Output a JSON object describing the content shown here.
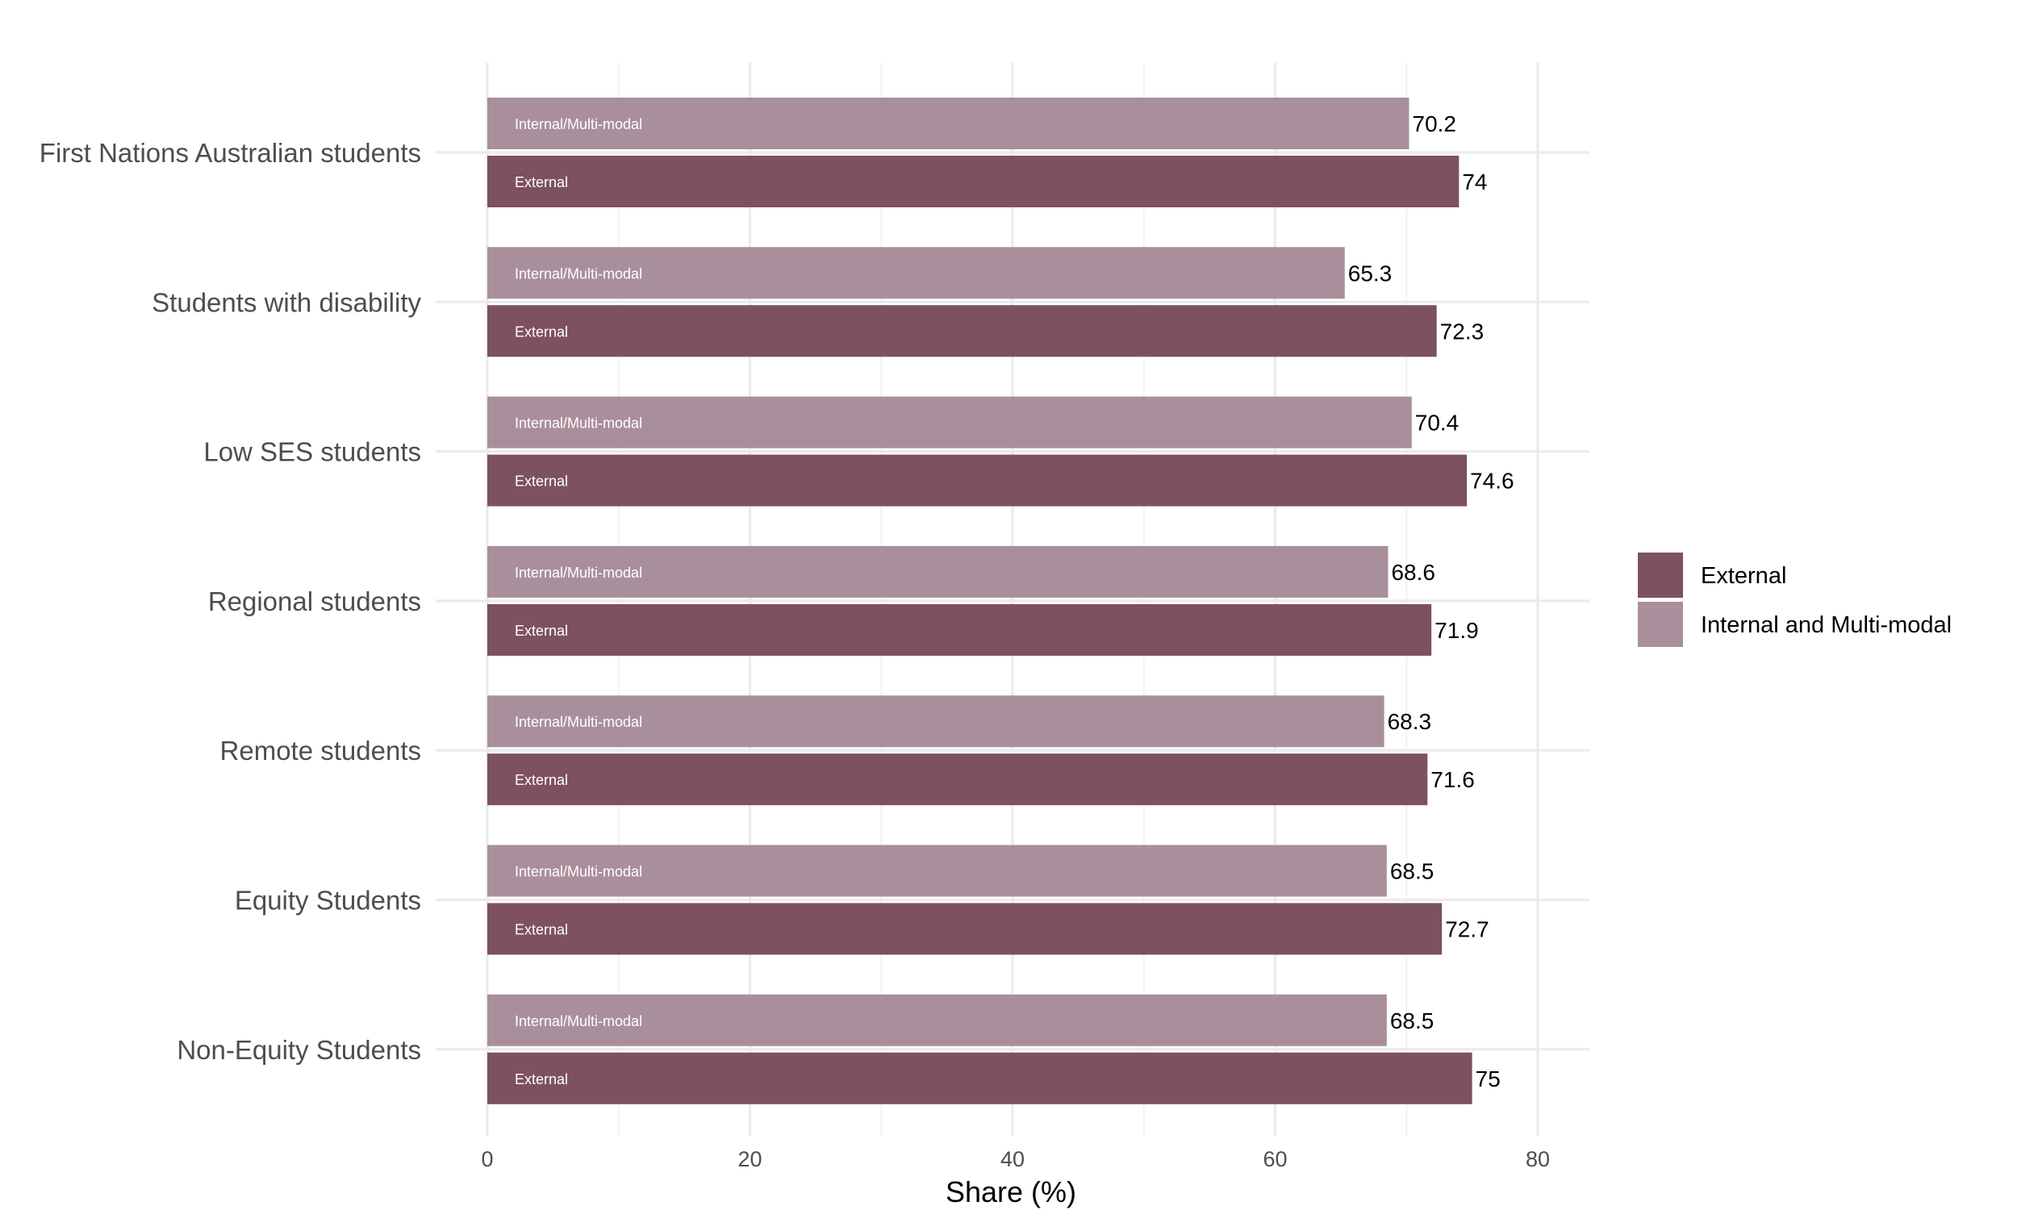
{
  "chart_data": {
    "type": "bar",
    "orientation": "horizontal",
    "title": "",
    "xlabel": "Share (%)",
    "ylabel": "",
    "xlim": [
      0,
      84
    ],
    "x_ticks": [
      0,
      20,
      40,
      60,
      80
    ],
    "grid": true,
    "legend_position": "right",
    "categories": [
      "First Nations Australian students",
      "Students with disability",
      "Low SES students",
      "Regional students",
      "Remote students",
      "Equity Students",
      "Non-Equity Students"
    ],
    "series": [
      {
        "name": "External",
        "bar_text": "External",
        "color": "#7d5062",
        "values": [
          74,
          72.3,
          74.6,
          71.9,
          71.6,
          72.7,
          75
        ],
        "value_labels": [
          "74",
          "72.3",
          "74.6",
          "71.9",
          "71.6",
          "72.7",
          "75"
        ]
      },
      {
        "name": "Internal and Multi-modal",
        "bar_text": "Internal/Multi-modal",
        "color": "#a98f9b",
        "values": [
          70.2,
          65.3,
          70.4,
          68.6,
          68.3,
          68.5,
          68.5
        ],
        "value_labels": [
          "70.2",
          "65.3",
          "70.4",
          "68.6",
          "68.3",
          "68.5",
          "68.5"
        ]
      }
    ]
  }
}
